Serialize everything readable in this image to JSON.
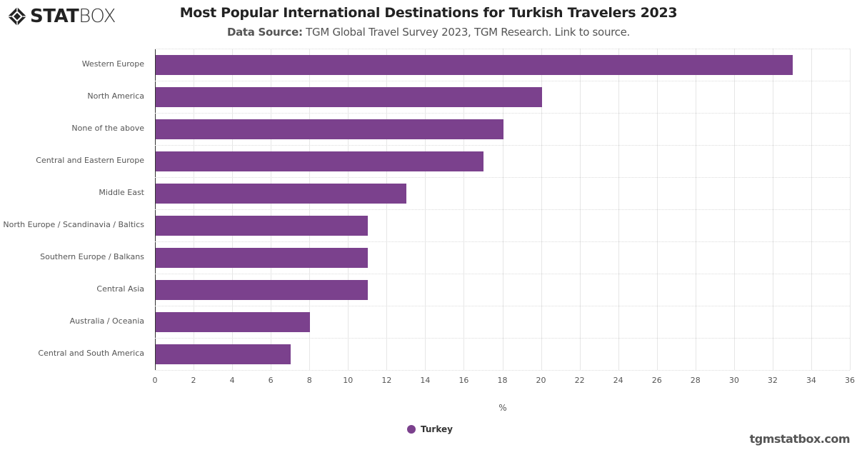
{
  "header": {
    "logo_bold": "STAT",
    "logo_light": "BOX",
    "title": "Most Popular International Destinations for Turkish Travelers 2023",
    "subtitle_label": "Data Source:",
    "subtitle_text": " TGM Global Travel Survey 2023, TGM Research. Link to source."
  },
  "footer": {
    "watermark": "tgmstatbox.com"
  },
  "colors": {
    "bar": "#7b418d",
    "grid": "#e6e6e6",
    "axis": "#333333"
  },
  "chart_data": {
    "type": "bar",
    "orientation": "horizontal",
    "title": "Most Popular International Destinations for Turkish Travelers 2023",
    "subtitle": "Data Source: TGM Global Travel Survey 2023, TGM Research. Link to source.",
    "categories": [
      "Western Europe",
      "North America",
      "None of the above",
      "Central and Eastern Europe",
      "Middle East",
      "North Europe / Scandinavia / Baltics",
      "Southern Europe / Balkans",
      "Central Asia",
      "Australia / Oceania",
      "Central and South America"
    ],
    "series": [
      {
        "name": "Turkey",
        "color": "#7b418d",
        "values": [
          33,
          20,
          18,
          17,
          13,
          11,
          11,
          11,
          8,
          7
        ]
      }
    ],
    "xlabel": "%",
    "ylabel": "",
    "xlim": [
      0,
      36
    ],
    "xticks": [
      "0",
      "2",
      "4",
      "6",
      "8",
      "10",
      "12",
      "14",
      "16",
      "18",
      "20",
      "22",
      "24",
      "26",
      "28",
      "30",
      "32",
      "34",
      "36"
    ],
    "grid": true,
    "legend_position": "bottom"
  }
}
